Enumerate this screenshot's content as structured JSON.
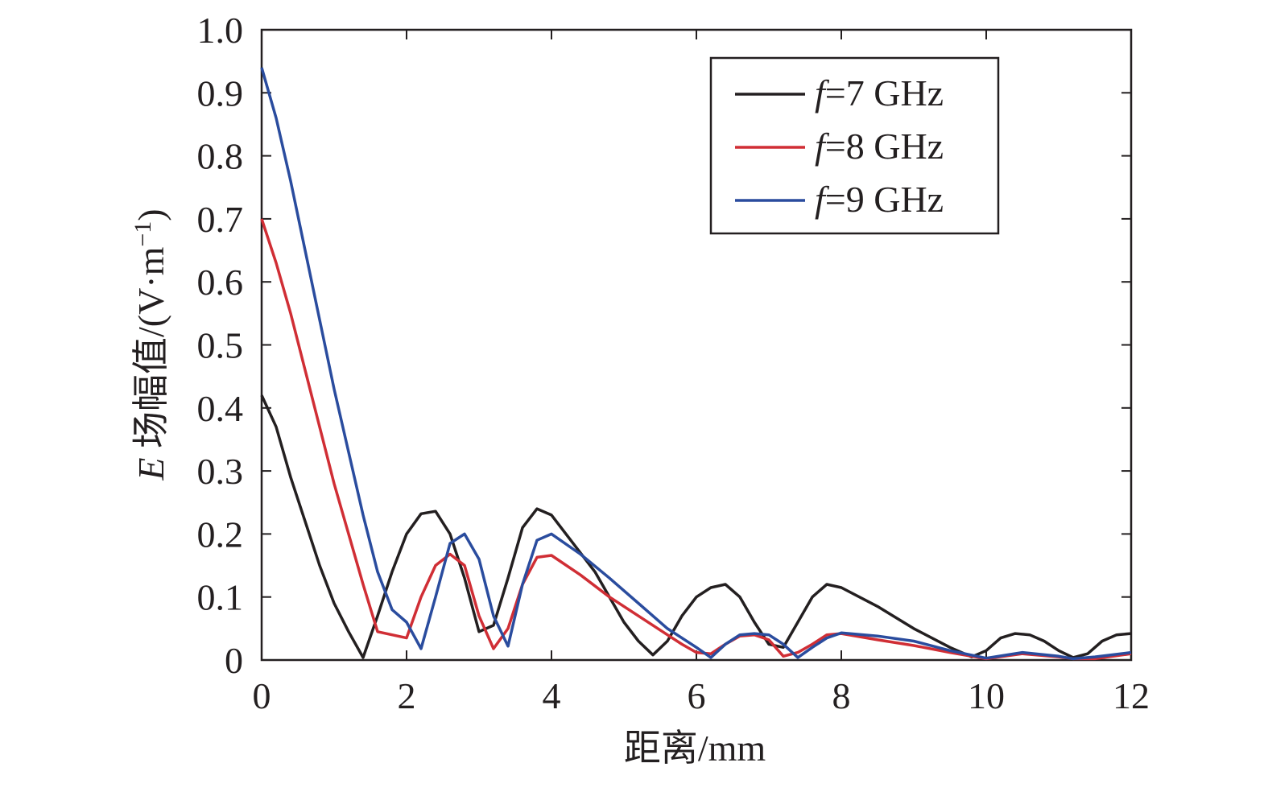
{
  "chart_data": {
    "type": "line",
    "title": "",
    "xlabel": "距离/mm",
    "ylabel": "E 场幅值/(V·m⁻¹)",
    "ylabel_italic_prefix": "E",
    "ylabel_rest": " 场幅值/(V·m",
    "ylabel_exp": "−1",
    "ylabel_close": ")",
    "xlim": [
      0,
      12
    ],
    "ylim": [
      0,
      1.0
    ],
    "xticks": [
      0,
      2,
      4,
      6,
      8,
      10,
      12
    ],
    "xtick_labels": [
      "0",
      "2",
      "4",
      "6",
      "8",
      "10",
      "12"
    ],
    "yticks": [
      0,
      0.1,
      0.2,
      0.3,
      0.4,
      0.5,
      0.6,
      0.7,
      0.8,
      0.9,
      1.0
    ],
    "ytick_labels": [
      "0",
      "0.1",
      "0.2",
      "0.3",
      "0.4",
      "0.5",
      "0.6",
      "0.7",
      "0.8",
      "0.9",
      "1.0"
    ],
    "grid": false,
    "legend_position": "top-right",
    "series": [
      {
        "name": "f=7 GHz",
        "legend_italic": "f",
        "legend_rest": "=7 GHz",
        "color": "#231f20",
        "x": [
          0,
          0.2,
          0.4,
          0.6,
          0.8,
          1.0,
          1.2,
          1.4,
          1.6,
          1.8,
          2.0,
          2.2,
          2.4,
          2.6,
          2.8,
          3.0,
          3.2,
          3.4,
          3.6,
          3.8,
          4.0,
          4.2,
          4.4,
          4.6,
          4.8,
          5.0,
          5.2,
          5.4,
          5.6,
          5.8,
          6.0,
          6.2,
          6.4,
          6.6,
          6.8,
          7.0,
          7.2,
          7.4,
          7.6,
          7.8,
          8.0,
          8.5,
          9.0,
          9.5,
          9.8,
          10.0,
          10.2,
          10.4,
          10.6,
          10.8,
          11.0,
          11.2,
          11.4,
          11.6,
          11.8,
          12.0
        ],
        "y": [
          0.42,
          0.37,
          0.29,
          0.22,
          0.15,
          0.09,
          0.045,
          0.004,
          0.07,
          0.14,
          0.2,
          0.232,
          0.236,
          0.2,
          0.13,
          0.045,
          0.055,
          0.13,
          0.21,
          0.24,
          0.23,
          0.2,
          0.17,
          0.14,
          0.1,
          0.06,
          0.03,
          0.008,
          0.03,
          0.07,
          0.1,
          0.115,
          0.12,
          0.1,
          0.06,
          0.025,
          0.02,
          0.06,
          0.1,
          0.12,
          0.115,
          0.085,
          0.05,
          0.02,
          0.005,
          0.015,
          0.035,
          0.042,
          0.04,
          0.03,
          0.015,
          0.004,
          0.01,
          0.03,
          0.04,
          0.042
        ]
      },
      {
        "name": "f=8 GHz",
        "legend_italic": "f",
        "legend_rest": "=8 GHz",
        "color": "#d02e35",
        "x": [
          0,
          0.2,
          0.4,
          0.6,
          0.8,
          1.0,
          1.2,
          1.4,
          1.6,
          1.8,
          2.0,
          2.2,
          2.4,
          2.6,
          2.8,
          3.0,
          3.2,
          3.4,
          3.6,
          3.8,
          4.0,
          4.4,
          4.8,
          5.2,
          5.6,
          5.8,
          6.0,
          6.2,
          6.4,
          6.6,
          6.8,
          7.0,
          7.2,
          7.4,
          7.6,
          7.8,
          8.0,
          8.5,
          9.0,
          9.5,
          10.0,
          10.5,
          11.0,
          11.2,
          11.5,
          12.0
        ],
        "y": [
          0.7,
          0.63,
          0.55,
          0.46,
          0.37,
          0.28,
          0.2,
          0.12,
          0.045,
          0.04,
          0.035,
          0.1,
          0.15,
          0.168,
          0.15,
          0.07,
          0.018,
          0.05,
          0.12,
          0.163,
          0.166,
          0.135,
          0.1,
          0.07,
          0.04,
          0.025,
          0.012,
          0.01,
          0.025,
          0.038,
          0.04,
          0.032,
          0.006,
          0.012,
          0.025,
          0.04,
          0.042,
          0.032,
          0.023,
          0.012,
          0.002,
          0.01,
          0.005,
          0.002,
          0.002,
          0.01
        ]
      },
      {
        "name": "f=9 GHz",
        "legend_italic": "f",
        "legend_rest": "=9 GHz",
        "color": "#2a4c9e",
        "x": [
          0,
          0.2,
          0.4,
          0.6,
          0.8,
          1.0,
          1.2,
          1.4,
          1.6,
          1.8,
          2.0,
          2.2,
          2.4,
          2.6,
          2.8,
          3.0,
          3.2,
          3.4,
          3.6,
          3.8,
          4.0,
          4.4,
          4.8,
          5.2,
          5.6,
          6.0,
          6.2,
          6.4,
          6.6,
          6.8,
          7.0,
          7.2,
          7.4,
          7.6,
          7.8,
          8.0,
          8.5,
          9.0,
          9.5,
          10.0,
          10.5,
          11.0,
          11.2,
          11.5,
          12.0
        ],
        "y": [
          0.94,
          0.86,
          0.76,
          0.65,
          0.54,
          0.43,
          0.33,
          0.23,
          0.14,
          0.08,
          0.06,
          0.018,
          0.1,
          0.185,
          0.2,
          0.16,
          0.07,
          0.022,
          0.12,
          0.19,
          0.2,
          0.168,
          0.13,
          0.09,
          0.05,
          0.02,
          0.004,
          0.025,
          0.04,
          0.042,
          0.04,
          0.025,
          0.004,
          0.02,
          0.035,
          0.043,
          0.038,
          0.03,
          0.015,
          0.003,
          0.012,
          0.006,
          0.002,
          0.005,
          0.012
        ]
      }
    ]
  }
}
